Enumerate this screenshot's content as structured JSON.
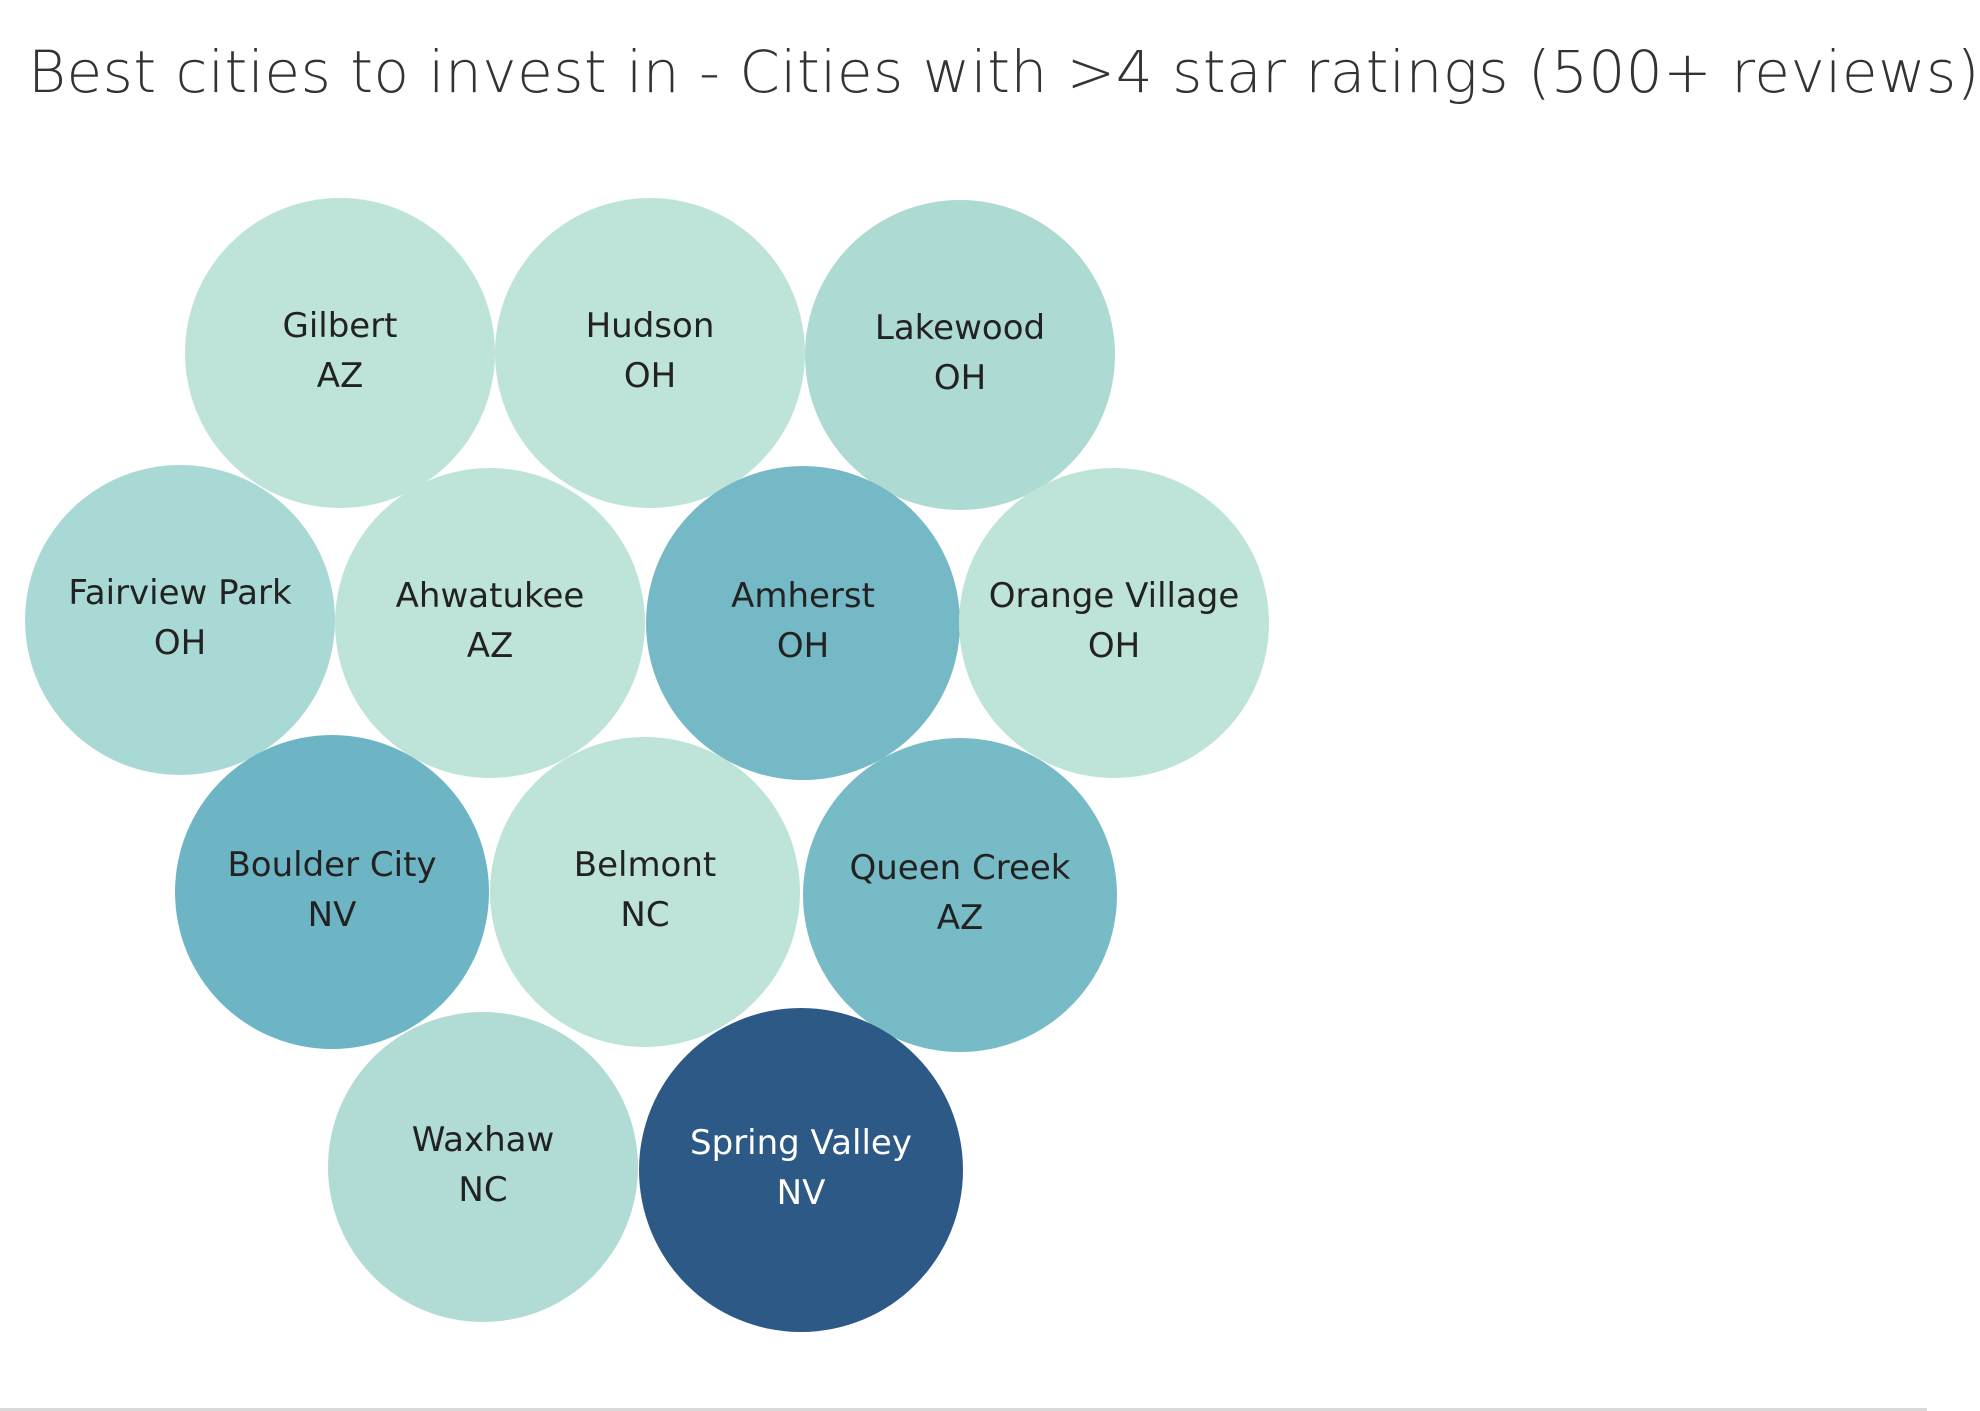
{
  "chart_data": {
    "type": "packed-bubble",
    "title": "Best cities to invest in - Cities with >4 star ratings (500+ reviews)",
    "bubbles": [
      {
        "city": "Gilbert",
        "state": "AZ",
        "color": "#bee4d9",
        "text_color": "#222222"
      },
      {
        "city": "Hudson",
        "state": "OH",
        "color": "#bee4d9",
        "text_color": "#222222"
      },
      {
        "city": "Lakewood",
        "state": "OH",
        "color": "#aedad4",
        "text_color": "#222222"
      },
      {
        "city": "Fairview Park",
        "state": "OH",
        "color": "#a9d9d5",
        "text_color": "#222222"
      },
      {
        "city": "Ahwatukee",
        "state": "AZ",
        "color": "#bee4d9",
        "text_color": "#222222"
      },
      {
        "city": "Amherst",
        "state": "OH",
        "color": "#75b9c6",
        "text_color": "#222222"
      },
      {
        "city": "Orange Village",
        "state": "OH",
        "color": "#bee4d9",
        "text_color": "#222222"
      },
      {
        "city": "Boulder City",
        "state": "NV",
        "color": "#6db5c4",
        "text_color": "#222222"
      },
      {
        "city": "Belmont",
        "state": "NC",
        "color": "#bee4d9",
        "text_color": "#222222"
      },
      {
        "city": "Queen Creek",
        "state": "AZ",
        "color": "#77bbc7",
        "text_color": "#222222"
      },
      {
        "city": "Waxhaw",
        "state": "NC",
        "color": "#b0dcd5",
        "text_color": "#222222"
      },
      {
        "city": "Spring Valley",
        "state": "NV",
        "color": "#2d5986",
        "text_color": "#ffffff"
      }
    ]
  }
}
